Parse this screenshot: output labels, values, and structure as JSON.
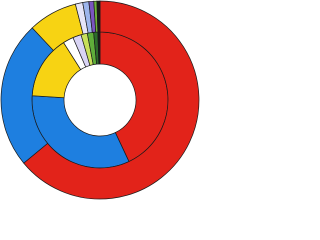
{
  "chart_data": {
    "type": "donut",
    "series": [
      {
        "values": [
          43,
          33,
          15,
          2.5,
          2,
          1.5,
          1.5,
          1,
          0.5
        ],
        "colors": [
          "#e2231a",
          "#1e7fe0",
          "#f7d313",
          "#ffffff",
          "#d9d4f5",
          "#c8e05a",
          "#5fae3a",
          "#2c6e2a",
          "#1a1a1a"
        ]
      },
      {
        "values": [
          64,
          24,
          8,
          1.2,
          1,
          0.8,
          0.5,
          0.5
        ],
        "colors": [
          "#e2231a",
          "#1e7fe0",
          "#f7d313",
          "#e6e4f7",
          "#9db5ec",
          "#7a55c0",
          "#6fb33a",
          "#1a1a1a"
        ]
      }
    ]
  }
}
